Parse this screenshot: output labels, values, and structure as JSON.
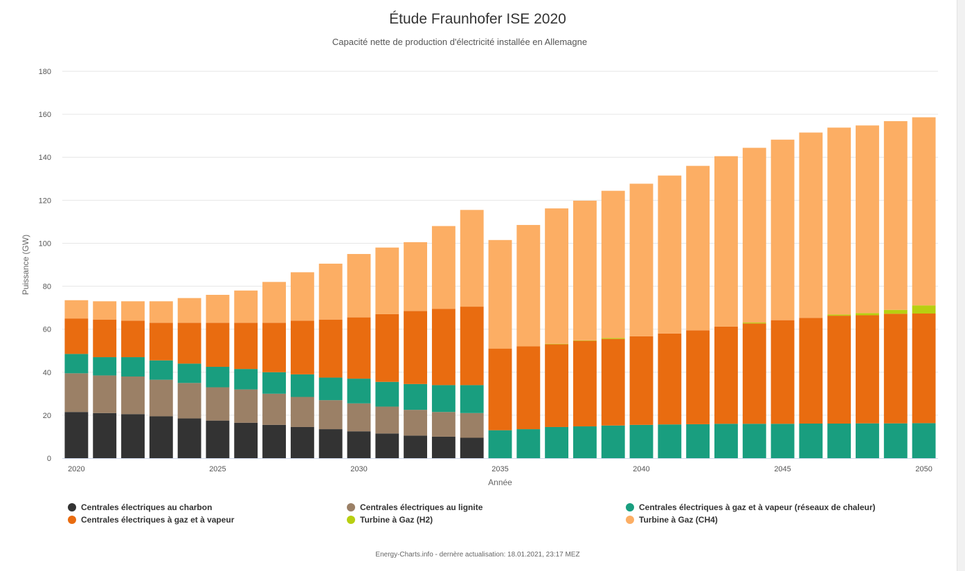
{
  "chart_data": {
    "type": "bar",
    "stacked": true,
    "title": "Étude Fraunhofer ISE 2020",
    "subtitle": "Capacité nette de production d'électricité installée en Allemagne",
    "xlabel": "Année",
    "ylabel": "Puissance (GW)",
    "ylim": [
      0,
      180
    ],
    "yticks": [
      0,
      20,
      40,
      60,
      80,
      100,
      120,
      140,
      160,
      180
    ],
    "xticks": [
      2020,
      2025,
      2030,
      2035,
      2040,
      2045,
      2050
    ],
    "grid": true,
    "legend_position": "bottom",
    "categories": [
      2020,
      2021,
      2022,
      2023,
      2024,
      2025,
      2026,
      2027,
      2028,
      2029,
      2030,
      2031,
      2032,
      2033,
      2034,
      2035,
      2036,
      2037,
      2038,
      2039,
      2040,
      2041,
      2042,
      2043,
      2044,
      2045,
      2046,
      2047,
      2048,
      2049,
      2050
    ],
    "series": [
      {
        "name": "Centrales électriques au charbon",
        "color": "#333333",
        "values": [
          21.5,
          21,
          20.5,
          19.5,
          18.5,
          17.5,
          16.5,
          15.5,
          14.5,
          13.5,
          12.5,
          11.5,
          10.5,
          10,
          9.5,
          0,
          0,
          0,
          0,
          0,
          0,
          0,
          0,
          0,
          0,
          0,
          0,
          0,
          0,
          0,
          0
        ]
      },
      {
        "name": "Centrales électriques au lignite",
        "color": "#9b8066",
        "values": [
          18,
          17.5,
          17.5,
          17,
          16.5,
          15.5,
          15.5,
          14.5,
          14,
          13.5,
          13,
          12.5,
          12,
          11.5,
          11.5,
          0,
          0,
          0,
          0,
          0,
          0,
          0,
          0,
          0,
          0,
          0,
          0,
          0,
          0,
          0,
          0
        ]
      },
      {
        "name": "Centrales électriques à gaz et à vapeur (réseaux de chaleur)",
        "color": "#199e7f",
        "values": [
          9,
          8.5,
          9,
          9,
          9,
          9.5,
          9.5,
          10,
          10.5,
          10.5,
          11.5,
          11.5,
          12,
          12.5,
          13,
          13,
          13.5,
          14.5,
          14.8,
          15.2,
          15.5,
          15.7,
          15.8,
          16,
          16,
          16,
          16.1,
          16.1,
          16.2,
          16.2,
          16.3
        ]
      },
      {
        "name": "Centrales électriques à gaz et à vapeur",
        "color": "#e96c10",
        "values": [
          16.5,
          17.5,
          17,
          17.5,
          19,
          20.5,
          21.5,
          23,
          25,
          27,
          28.5,
          31.5,
          34,
          35.5,
          36.5,
          38,
          38.5,
          38.5,
          39.8,
          40.3,
          41.2,
          42.3,
          43.7,
          45.2,
          46.7,
          48.2,
          49.2,
          50.2,
          50.3,
          51,
          51
        ]
      },
      {
        "name": "Turbine à Gaz (H2)",
        "color": "#b8cf11",
        "values": [
          0,
          0,
          0,
          0,
          0,
          0,
          0,
          0,
          0,
          0,
          0,
          0,
          0,
          0,
          0,
          0,
          0,
          0.2,
          0.2,
          0.4,
          0,
          0,
          0,
          0,
          0.4,
          0,
          0,
          0.5,
          1,
          1.8,
          3.8
        ]
      },
      {
        "name": "Turbine à Gaz (CH4)",
        "color": "#fcae64",
        "values": [
          8.5,
          8.5,
          9,
          10,
          11.5,
          13,
          15,
          19,
          22.5,
          26,
          29.5,
          31,
          32,
          38.5,
          45,
          50.5,
          56.5,
          63,
          65,
          68.5,
          71,
          73.5,
          76.5,
          79.3,
          81.3,
          84,
          86.2,
          87,
          87.3,
          87.8,
          87.5
        ]
      }
    ]
  },
  "legend": {
    "items": [
      {
        "label": "Centrales électriques au charbon",
        "color": "#333333"
      },
      {
        "label": "Centrales électriques au lignite",
        "color": "#9b8066"
      },
      {
        "label": "Centrales électriques à gaz et à vapeur (réseaux de chaleur)",
        "color": "#199e7f"
      },
      {
        "label": "Centrales électriques à gaz et à vapeur",
        "color": "#e96c10"
      },
      {
        "label": "Turbine à Gaz (H2)",
        "color": "#b8cf11"
      },
      {
        "label": "Turbine à Gaz (CH4)",
        "color": "#fcae64"
      }
    ]
  },
  "credits": "Energy-Charts.info - dernère actualisation: 18.01.2021, 23:17 MEZ"
}
